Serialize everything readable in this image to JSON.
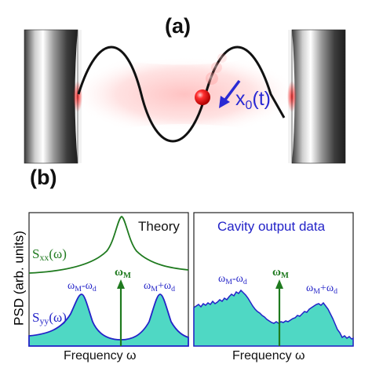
{
  "panel_a": {
    "label": "(a)",
    "displacement_label": "x",
    "displacement_sub": "0",
    "displacement_arg": "(t)"
  },
  "panel_b": {
    "label": "(b)",
    "y_axis_label": "PSD (arb. units)",
    "left": {
      "title": "Theory",
      "sxx_main": "S",
      "sxx_sub": "xx",
      "sxx_arg": "(ω)",
      "syy_main": "S",
      "syy_sub": "yy",
      "syy_arg": "(ω)",
      "omega_m_main": "ω",
      "omega_m_sub": "M",
      "left_peak_main": "ω",
      "left_peak_sub1": "M",
      "left_peak_mid": "-ω",
      "left_peak_sub2": "d",
      "right_peak_main": "ω",
      "right_peak_sub1": "M",
      "right_peak_mid": "+ω",
      "right_peak_sub2": "d",
      "x_axis_label": "Frequency ω"
    },
    "right": {
      "title": "Cavity output data",
      "omega_m_main": "ω",
      "omega_m_sub": "M",
      "left_peak_main": "ω",
      "left_peak_sub1": "M",
      "left_peak_mid": "-ω",
      "left_peak_sub2": "d",
      "right_peak_main": "ω",
      "right_peak_sub1": "M",
      "right_peak_mid": "+ω",
      "right_peak_sub2": "d",
      "x_axis_label": "Frequency ω"
    }
  },
  "colors": {
    "green": "#1f7a1f",
    "blue": "#2323c8",
    "fill": "#4fd8c4",
    "red": "#e00000",
    "wave": "#111111",
    "arrow_blue": "#2a2ad4"
  }
}
